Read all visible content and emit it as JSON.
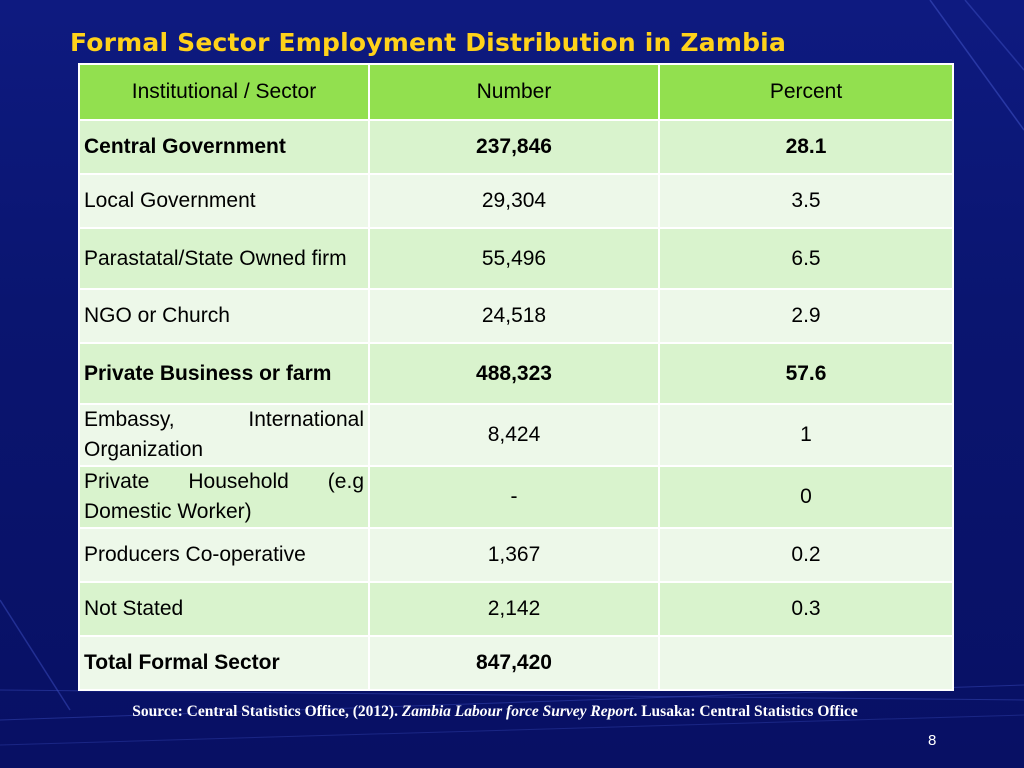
{
  "slide": {
    "title": "Formal Sector Employment Distribution in  Zambia",
    "page_number": "8",
    "source": {
      "prefix": "Source: Central Statistics Office, (2012). ",
      "report_title": "Zambia Labour force Survey Report",
      "suffix": ". Lusaka: Central Statistics Office"
    }
  },
  "table": {
    "headers": [
      "Institutional / Sector",
      "Number",
      "Percent"
    ],
    "rows": [
      {
        "sector": "Central Government",
        "number": "237,846",
        "percent": "28.1",
        "bold": true
      },
      {
        "sector": "Local Government",
        "number": "29,304",
        "percent": "3.5",
        "bold": false
      },
      {
        "sector": "Parastatal/State Owned firm",
        "number": "55,496",
        "percent": "6.5",
        "bold": false
      },
      {
        "sector": "NGO or Church",
        "number": "24,518",
        "percent": "2.9",
        "bold": false
      },
      {
        "sector": "Private Business or farm",
        "number": "488,323",
        "percent": "57.6",
        "bold": true
      },
      {
        "sector": "Embassy, International Organization",
        "number": "8,424",
        "percent": "1",
        "bold": false
      },
      {
        "sector": "Private Household (e.g Domestic Worker)",
        "number": "-",
        "percent": "0",
        "bold": false
      },
      {
        "sector": "Producers Co-operative",
        "number": "1,367",
        "percent": "0.2",
        "bold": false
      },
      {
        "sector": "Not Stated",
        "number": "2,142",
        "percent": "0.3",
        "bold": false
      },
      {
        "sector": "Total Formal Sector",
        "number": "847,420",
        "percent": "",
        "bold": true
      }
    ]
  },
  "colors": {
    "background": "#0a1570",
    "title": "#ffd21a",
    "header_fill": "#92e04f",
    "row_fill_dark": "#d9f3cd",
    "row_fill_light": "#edf8e9"
  }
}
